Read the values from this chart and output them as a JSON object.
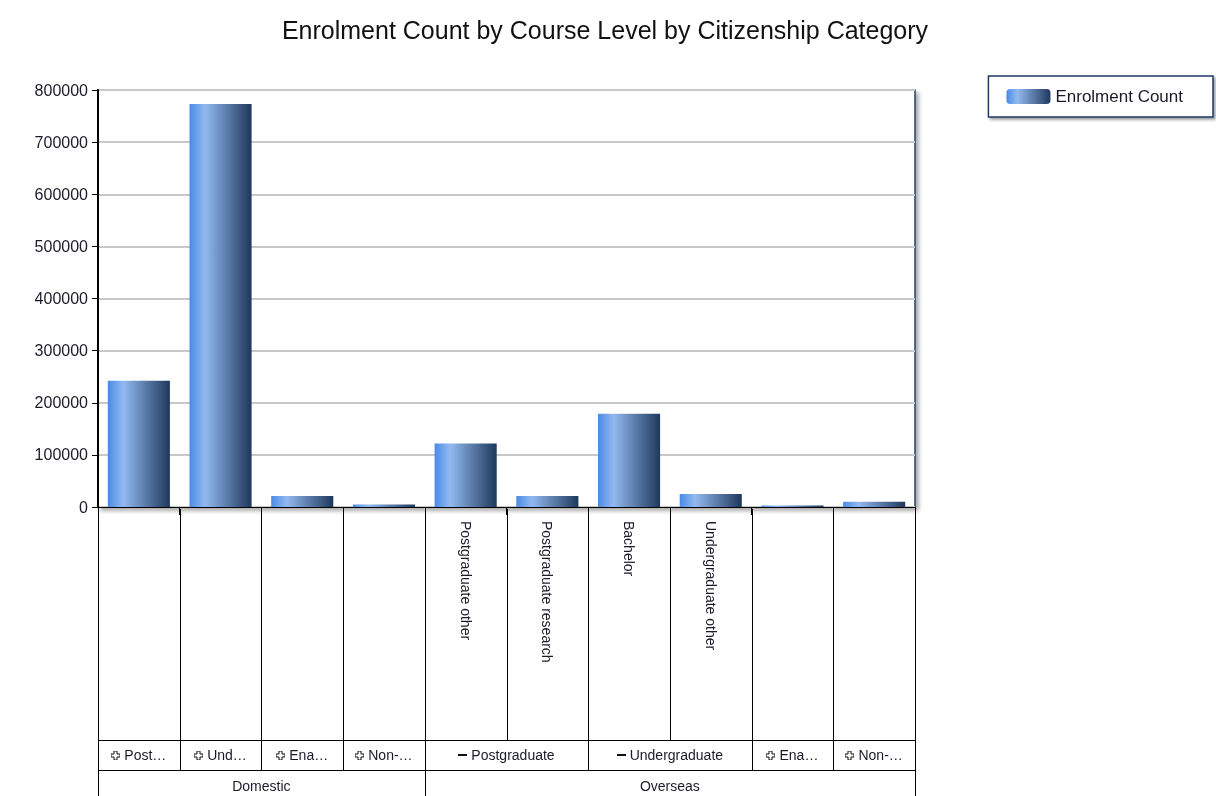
{
  "chart_data": {
    "type": "bar",
    "title": "Enrolment Count by Course Level by Citizenship Category",
    "categories": [
      null,
      null,
      null,
      null,
      "Postgraduate other",
      "Postgraduate research",
      "Bachelor",
      "Undergraduate other",
      null,
      null
    ],
    "series": [
      {
        "name": "Enrolment Count",
        "color": "#4a8be6",
        "values": [
          242000,
          773000,
          21000,
          5000,
          122000,
          21000,
          179000,
          25000,
          3000,
          10000
        ]
      }
    ],
    "ylim": [
      0,
      800000
    ],
    "yticks": [
      0,
      100000,
      200000,
      300000,
      400000,
      500000,
      600000,
      700000,
      800000
    ],
    "grid": "y",
    "legend": "top right",
    "annotations": [
      "Post…",
      "Und…",
      "Ena…",
      "Non-…",
      "Postgraduate",
      "Undergraduate",
      "Ena…",
      "Non-…",
      "Domestic",
      "Overseas"
    ]
  }
}
